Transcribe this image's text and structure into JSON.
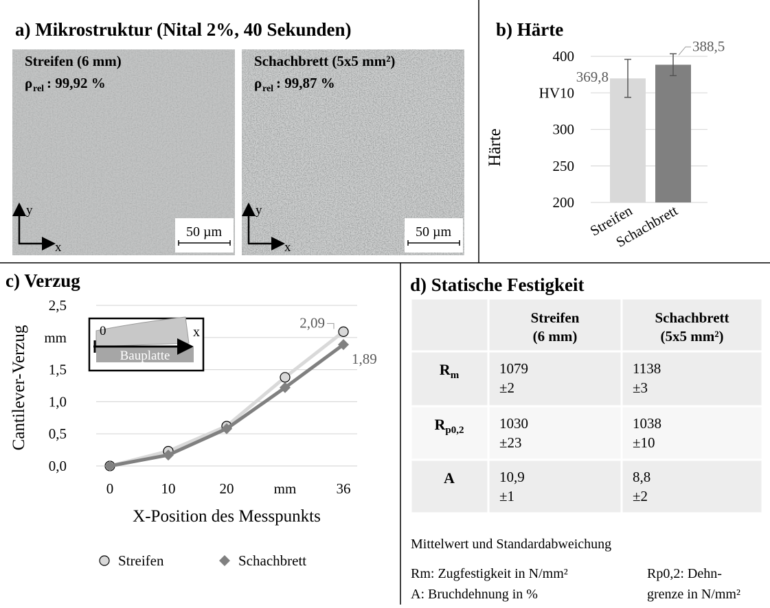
{
  "panel_a": {
    "title": "a) Mikrostruktur (Nital 2%, 40 Sekunden)",
    "images": [
      {
        "label": "Streifen (6 mm)",
        "density_symbol": "ρ",
        "density_subscript": "rel",
        "density_text": ": 99,92 %",
        "scale_bar": "50 µm",
        "axis_x": "x",
        "axis_y": "y"
      },
      {
        "label": "Schachbrett (5x5 mm²)",
        "density_symbol": "ρ",
        "density_subscript": "rel",
        "density_text": ": 99,87 %",
        "scale_bar": "50 µm",
        "axis_x": "x",
        "axis_y": "y"
      }
    ]
  },
  "chart_data": [
    {
      "type": "bar",
      "title": "b) Härte",
      "y_label": "Härte",
      "categories": [
        "Streifen",
        "Schachbrett"
      ],
      "values": [
        369.8,
        388.5
      ],
      "errors": [
        26,
        15
      ],
      "value_labels": [
        "369,8",
        "388,5"
      ],
      "colors": [
        "#d9d9d9",
        "#808080"
      ],
      "ylim": [
        200,
        420
      ],
      "yticks": [
        200,
        250,
        300,
        {
          "value": 350,
          "label": "HV10"
        },
        400
      ],
      "grid": true
    },
    {
      "type": "line",
      "title": "c) Verzug",
      "x_label": "X-Position des Messpunkts",
      "y_label": "Cantilever-Verzug",
      "categories": [
        "0",
        "10",
        "20",
        "mm",
        "36"
      ],
      "series": [
        {
          "name": "Streifen",
          "color": "#d9d9d9",
          "marker": "circle",
          "values": [
            0,
            0.23,
            0.62,
            1.38,
            2.09
          ],
          "value_labels": [
            null,
            null,
            null,
            null,
            "2,09"
          ]
        },
        {
          "name": "Schachbrett",
          "color": "#808080",
          "marker": "diamond",
          "values": [
            0,
            0.17,
            0.58,
            1.22,
            1.89
          ],
          "value_labels": [
            null,
            null,
            null,
            null,
            "1,89"
          ]
        }
      ],
      "ylim": [
        0,
        2.5
      ],
      "yticks": [
        {
          "value": 0,
          "label": "0,0"
        },
        {
          "value": 0.5,
          "label": "0,5"
        },
        {
          "value": 1,
          "label": "1,0"
        },
        {
          "value": 1.5,
          "label": "1,5"
        },
        {
          "value": 2,
          "label": "mm"
        },
        {
          "value": 2.5,
          "label": "2,5"
        }
      ],
      "grid": true,
      "legend": "bottom",
      "inset": {
        "origin": "0",
        "axis": "x",
        "plate": "Bauplatte"
      }
    }
  ],
  "panel_d": {
    "title": "d) Statische Festigkeit",
    "table": {
      "columns": [
        [
          "Streifen",
          "(6 mm)"
        ],
        [
          "Schachbrett",
          "(5x5 mm²)"
        ]
      ],
      "rows": [
        {
          "symbol": "R",
          "subscript": "m",
          "cells": [
            [
              "1079",
              "±2"
            ],
            [
              "1138",
              "±3"
            ]
          ]
        },
        {
          "symbol": "R",
          "subscript": "p0,2",
          "cells": [
            [
              "1030",
              "±23"
            ],
            [
              "1038",
              "±10"
            ]
          ]
        },
        {
          "symbol": "A",
          "cells": [
            [
              "10,9",
              "±1"
            ],
            [
              "8,8",
              "±2"
            ]
          ]
        }
      ]
    },
    "note": "Mittelwert und Standardabweichung",
    "legend_left": [
      "Rm: Zugfestigkeit in N/mm²",
      "A: Bruchdehnung in %"
    ],
    "legend_right": [
      "Rp0,2: Dehn-",
      "grenze in N/mm²"
    ]
  }
}
